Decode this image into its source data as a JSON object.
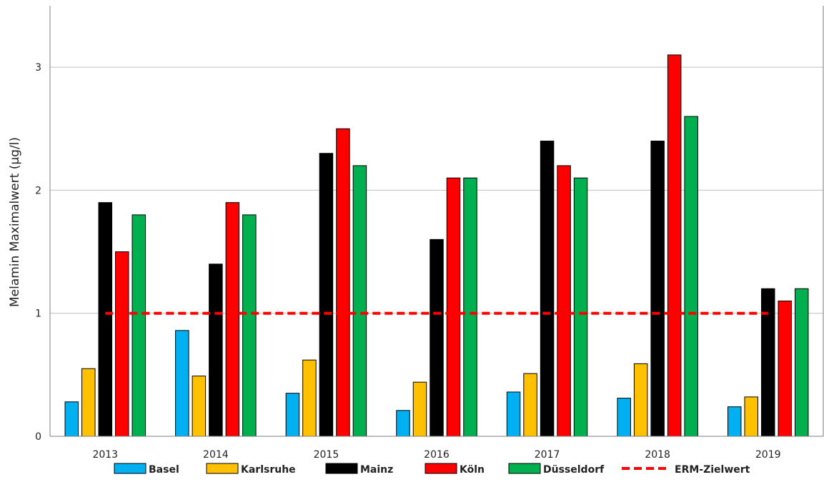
{
  "chart_data": {
    "type": "bar",
    "title": "",
    "xlabel": "",
    "ylabel": "Melamin Maximalwert (µg/l)",
    "ylim": [
      0,
      3.5
    ],
    "yticks": [
      0,
      1,
      2,
      3
    ],
    "grid": "horizontal",
    "legend_position": "bottom",
    "categories": [
      "2013",
      "2014",
      "2015",
      "2016",
      "2017",
      "2018",
      "2019"
    ],
    "series": [
      {
        "name": "Basel",
        "color": "#00b0f0",
        "values": [
          0.28,
          0.86,
          0.35,
          0.21,
          0.36,
          0.31,
          0.24
        ]
      },
      {
        "name": "Karlsruhe",
        "color": "#ffc000",
        "values": [
          0.55,
          0.49,
          0.62,
          0.44,
          0.51,
          0.59,
          0.32
        ]
      },
      {
        "name": "Mainz",
        "color": "#000000",
        "values": [
          1.9,
          1.4,
          2.3,
          1.6,
          2.4,
          2.4,
          1.2
        ]
      },
      {
        "name": "Köln",
        "color": "#ff0000",
        "values": [
          1.5,
          1.9,
          2.5,
          2.1,
          2.2,
          3.1,
          1.1
        ]
      },
      {
        "name": "Düsseldorf",
        "color": "#00b050",
        "values": [
          1.8,
          1.8,
          2.2,
          2.1,
          2.1,
          2.6,
          1.2
        ]
      }
    ],
    "reference_line": {
      "name": "ERM-Zielwert",
      "value": 1.0,
      "color": "#ff0000",
      "style": "dashed"
    }
  }
}
